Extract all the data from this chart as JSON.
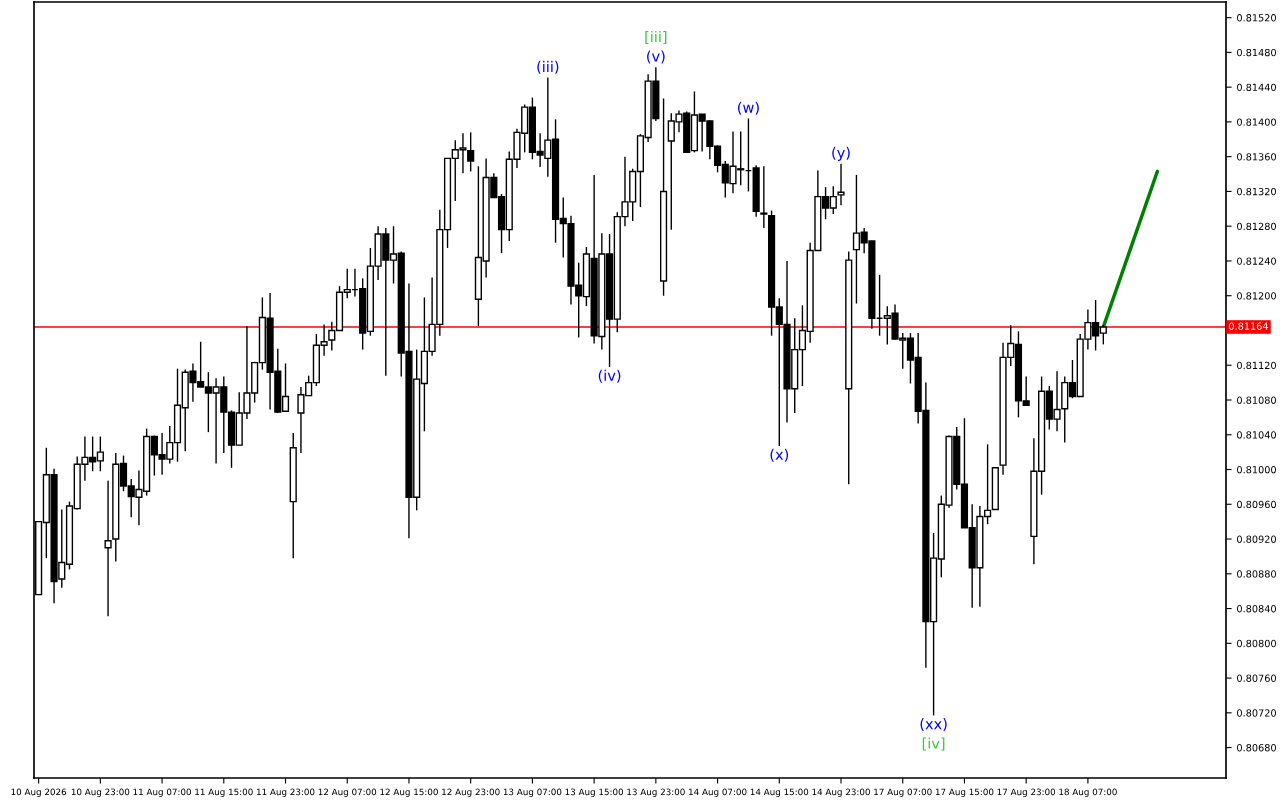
{
  "chart_data": {
    "type": "candlestick",
    "categories": [
      "10 Aug 2026",
      null,
      null,
      null,
      null,
      null,
      null,
      null,
      "10 Aug 23:00",
      null,
      null,
      null,
      null,
      null,
      null,
      null,
      "11 Aug 07:00",
      null,
      null,
      null,
      null,
      null,
      null,
      null,
      "11 Aug 15:00",
      null,
      null,
      null,
      null,
      null,
      null,
      null,
      "11 Aug 23:00",
      null,
      null,
      null,
      null,
      null,
      null,
      null,
      "12 Aug 07:00",
      null,
      null,
      null,
      null,
      null,
      null,
      null,
      "12 Aug 15:00",
      null,
      null,
      null,
      null,
      null,
      null,
      null,
      "12 Aug 23:00",
      null,
      null,
      null,
      null,
      null,
      null,
      null,
      "13 Aug 07:00",
      null,
      null,
      null,
      null,
      null,
      null,
      null,
      "13 Aug 15:00",
      null,
      null,
      null,
      null,
      null,
      null,
      null,
      "13 Aug 23:00",
      null,
      null,
      null,
      null,
      null,
      null,
      null,
      "14 Aug 07:00",
      null,
      null,
      null,
      null,
      null,
      null,
      null,
      "14 Aug 15:00",
      null,
      null,
      null,
      null,
      null,
      null,
      null,
      "14 Aug 23:00",
      null,
      null,
      null,
      null,
      null,
      null,
      null,
      "17 Aug 07:00",
      null,
      null,
      null,
      null,
      null,
      null,
      null,
      "17 Aug 15:00",
      null,
      null,
      null,
      null,
      null,
      null,
      null,
      "17 Aug 23:00",
      null,
      null,
      null,
      null,
      null,
      null,
      null,
      "18 Aug 07:00",
      null,
      null,
      null,
      null,
      null,
      null,
      null,
      null,
      null,
      null,
      null,
      null,
      null,
      null,
      null,
      null,
      null
    ],
    "ohlc": [
      [
        0.80856,
        0.8094,
        0.80856,
        0.8094
      ],
      [
        0.80939,
        0.81025,
        0.80898,
        0.80994
      ],
      [
        0.80994,
        0.81001,
        0.80846,
        0.80871
      ],
      [
        0.80874,
        0.80954,
        0.80864,
        0.80893
      ],
      [
        0.80891,
        0.80963,
        0.80885,
        0.80958
      ],
      [
        0.80955,
        0.81015,
        0.80954,
        0.81006
      ],
      [
        0.81006,
        0.81038,
        0.80987,
        0.81014
      ],
      [
        0.81014,
        0.81038,
        0.80998,
        0.81009
      ],
      [
        0.8101,
        0.81038,
        0.80998,
        0.8102
      ],
      [
        0.8091,
        0.80987,
        0.80831,
        0.80918
      ],
      [
        0.8092,
        0.81019,
        0.80894,
        0.81006
      ],
      [
        0.81007,
        0.81016,
        0.80975,
        0.80981
      ],
      [
        0.80981,
        0.80989,
        0.80945,
        0.80969
      ],
      [
        0.80968,
        0.80999,
        0.80936,
        0.80977
      ],
      [
        0.80975,
        0.81047,
        0.8097,
        0.81038
      ],
      [
        0.81038,
        0.81039,
        0.80993,
        0.81017
      ],
      [
        0.81017,
        0.81042,
        0.80994,
        0.81012
      ],
      [
        0.81012,
        0.8105,
        0.81007,
        0.81031
      ],
      [
        0.81031,
        0.81116,
        0.81009,
        0.81074
      ],
      [
        0.81071,
        0.81115,
        0.81021,
        0.81112
      ],
      [
        0.81113,
        0.81122,
        0.81078,
        0.811
      ],
      [
        0.81101,
        0.81147,
        0.81095,
        0.81095
      ],
      [
        0.81095,
        0.81112,
        0.81043,
        0.81088
      ],
      [
        0.81088,
        0.81105,
        0.81007,
        0.81095
      ],
      [
        0.81095,
        0.81107,
        0.81019,
        0.81066
      ],
      [
        0.81066,
        0.81068,
        0.81002,
        0.81028
      ],
      [
        0.81028,
        0.81089,
        0.81028,
        0.81065
      ],
      [
        0.81065,
        0.81165,
        0.81058,
        0.81088
      ],
      [
        0.81088,
        0.81124,
        0.81077,
        0.81123
      ],
      [
        0.81123,
        0.81198,
        0.81115,
        0.81175
      ],
      [
        0.81174,
        0.81203,
        0.81069,
        0.81112
      ],
      [
        0.81113,
        0.81139,
        0.81065,
        0.81066
      ],
      [
        0.81067,
        0.81122,
        0.81067,
        0.81084
      ],
      [
        0.80963,
        0.81042,
        0.80898,
        0.81025
      ],
      [
        0.81065,
        0.81095,
        0.81019,
        0.81086
      ],
      [
        0.81085,
        0.81108,
        0.81085,
        0.811
      ],
      [
        0.811,
        0.81156,
        0.81096,
        0.81143
      ],
      [
        0.81143,
        0.81167,
        0.81131,
        0.81147
      ],
      [
        0.81149,
        0.8117,
        0.81137,
        0.8116
      ],
      [
        0.8116,
        0.81211,
        0.8116,
        0.81204
      ],
      [
        0.81204,
        0.81231,
        0.81197,
        0.81207
      ],
      [
        0.81207,
        0.81231,
        0.81199,
        0.81207
      ],
      [
        0.81208,
        0.8122,
        0.81138,
        0.81157
      ],
      [
        0.81159,
        0.81255,
        0.81154,
        0.81234
      ],
      [
        0.81234,
        0.8128,
        0.81218,
        0.81271
      ],
      [
        0.81271,
        0.81278,
        0.81108,
        0.81241
      ],
      [
        0.81241,
        0.8128,
        0.81214,
        0.81248
      ],
      [
        0.81249,
        0.81251,
        0.81107,
        0.81134
      ],
      [
        0.81136,
        0.81214,
        0.80921,
        0.80968
      ],
      [
        0.80968,
        0.81138,
        0.80953,
        0.81104
      ],
      [
        0.81099,
        0.81198,
        0.81044,
        0.81136
      ],
      [
        0.81136,
        0.81221,
        0.81131,
        0.81167
      ],
      [
        0.81167,
        0.81299,
        0.81154,
        0.81276
      ],
      [
        0.81276,
        0.81358,
        0.81255,
        0.81358
      ],
      [
        0.81358,
        0.81379,
        0.81309,
        0.81368
      ],
      [
        0.81368,
        0.81387,
        0.81341,
        0.8137
      ],
      [
        0.81367,
        0.81388,
        0.81343,
        0.81355
      ],
      [
        0.81196,
        0.81349,
        0.81165,
        0.81244
      ],
      [
        0.8124,
        0.81358,
        0.81221,
        0.81336
      ],
      [
        0.81336,
        0.81341,
        0.81313,
        0.81313
      ],
      [
        0.81314,
        0.81317,
        0.81249,
        0.81276
      ],
      [
        0.81276,
        0.81366,
        0.81263,
        0.81357
      ],
      [
        0.81357,
        0.81392,
        0.81347,
        0.81388
      ],
      [
        0.81387,
        0.8142,
        0.81365,
        0.81417
      ],
      [
        0.81417,
        0.81428,
        0.81357,
        0.81365
      ],
      [
        0.81366,
        0.81387,
        0.81348,
        0.81362
      ],
      [
        0.81358,
        0.81451,
        0.81337,
        0.81379
      ],
      [
        0.8138,
        0.81403,
        0.81261,
        0.81288
      ],
      [
        0.81289,
        0.81313,
        0.81244,
        0.81283
      ],
      [
        0.81283,
        0.81292,
        0.8119,
        0.81211
      ],
      [
        0.81212,
        0.81238,
        0.81152,
        0.812
      ],
      [
        0.81199,
        0.81256,
        0.81188,
        0.81248
      ],
      [
        0.81243,
        0.81339,
        0.81145,
        0.81154
      ],
      [
        0.81153,
        0.81272,
        0.81138,
        0.81248
      ],
      [
        0.81248,
        0.81271,
        0.81118,
        0.81173
      ],
      [
        0.81173,
        0.81296,
        0.81158,
        0.81291
      ],
      [
        0.81291,
        0.8136,
        0.8128,
        0.81308
      ],
      [
        0.81308,
        0.81346,
        0.81286,
        0.81343
      ],
      [
        0.81343,
        0.81386,
        0.81302,
        0.81384
      ],
      [
        0.81382,
        0.81455,
        0.81377,
        0.81447
      ],
      [
        0.81447,
        0.81463,
        0.81401,
        0.81404
      ],
      [
        0.81217,
        0.81427,
        0.812,
        0.8132
      ],
      [
        0.81378,
        0.8141,
        0.81276,
        0.81401
      ],
      [
        0.814,
        0.81413,
        0.81388,
        0.81409
      ],
      [
        0.8141,
        0.81412,
        0.81365,
        0.81365
      ],
      [
        0.81367,
        0.81435,
        0.81365,
        0.81408
      ],
      [
        0.81409,
        0.81409,
        0.81366,
        0.81401
      ],
      [
        0.81401,
        0.81402,
        0.81357,
        0.81372
      ],
      [
        0.81372,
        0.81373,
        0.81342,
        0.8135
      ],
      [
        0.81351,
        0.81355,
        0.81313,
        0.8133
      ],
      [
        0.81329,
        0.81389,
        0.81318,
        0.81349
      ],
      [
        0.81346,
        0.81389,
        0.81327,
        0.81345
      ],
      [
        0.81344,
        0.81404,
        0.8132,
        0.81344
      ],
      [
        0.81347,
        0.8135,
        0.81291,
        0.81297
      ],
      [
        0.81295,
        0.81349,
        0.81278,
        0.81294
      ],
      [
        0.81292,
        0.81298,
        0.81154,
        0.81187
      ],
      [
        0.81187,
        0.81197,
        0.81027,
        0.81167
      ],
      [
        0.81167,
        0.8124,
        0.81054,
        0.81093
      ],
      [
        0.81093,
        0.81174,
        0.81065,
        0.81138
      ],
      [
        0.81138,
        0.81189,
        0.81096,
        0.8116
      ],
      [
        0.81159,
        0.81261,
        0.81146,
        0.81252
      ],
      [
        0.81252,
        0.81344,
        0.81252,
        0.81314
      ],
      [
        0.81314,
        0.81325,
        0.81288,
        0.81301
      ],
      [
        0.81301,
        0.81326,
        0.81294,
        0.81314
      ],
      [
        0.81316,
        0.81352,
        0.81304,
        0.81319
      ],
      [
        0.81093,
        0.81251,
        0.80983,
        0.81241
      ],
      [
        0.81253,
        0.81339,
        0.81191,
        0.81272
      ],
      [
        0.81273,
        0.81278,
        0.81249,
        0.81261
      ],
      [
        0.81263,
        0.81263,
        0.81162,
        0.81174
      ],
      [
        0.81174,
        0.81224,
        0.81154,
        0.81174
      ],
      [
        0.81174,
        0.81188,
        0.81144,
        0.81177
      ],
      [
        0.8118,
        0.8119,
        0.8115,
        0.8115
      ],
      [
        0.81149,
        0.81157,
        0.81116,
        0.81151
      ],
      [
        0.81151,
        0.81157,
        0.81099,
        0.81126
      ],
      [
        0.81129,
        0.81157,
        0.81053,
        0.81067
      ],
      [
        0.81068,
        0.811,
        0.80772,
        0.80825
      ],
      [
        0.80825,
        0.80927,
        0.80717,
        0.80898
      ],
      [
        0.80897,
        0.8097,
        0.80876,
        0.8096
      ],
      [
        0.80959,
        0.81039,
        0.80956,
        0.81038
      ],
      [
        0.81038,
        0.81049,
        0.80977,
        0.80983
      ],
      [
        0.80983,
        0.81059,
        0.80933,
        0.80933
      ],
      [
        0.80933,
        0.8096,
        0.80841,
        0.80887
      ],
      [
        0.80887,
        0.80958,
        0.80842,
        0.80946
      ],
      [
        0.80946,
        0.81029,
        0.80937,
        0.80953
      ],
      [
        0.80954,
        0.81002,
        0.80954,
        0.81002
      ],
      [
        0.81005,
        0.81146,
        0.80994,
        0.81129
      ],
      [
        0.81129,
        0.81166,
        0.81119,
        0.81145
      ],
      [
        0.81144,
        0.81159,
        0.8106,
        0.81079
      ],
      [
        0.81079,
        0.81107,
        0.81074,
        0.81074
      ],
      [
        0.80923,
        0.81036,
        0.80891,
        0.80998
      ],
      [
        0.80998,
        0.81107,
        0.80971,
        0.8109
      ],
      [
        0.8109,
        0.81096,
        0.81046,
        0.81058
      ],
      [
        0.81058,
        0.81113,
        0.81044,
        0.81069
      ],
      [
        0.8107,
        0.81107,
        0.81031,
        0.811
      ],
      [
        0.811,
        0.81126,
        0.81082,
        0.81084
      ],
      [
        0.81084,
        0.81156,
        0.81084,
        0.8115
      ],
      [
        0.8115,
        0.81184,
        0.81138,
        0.81169
      ],
      [
        0.81169,
        0.81195,
        0.81137,
        0.81154
      ],
      [
        0.81157,
        0.81166,
        0.81144,
        0.81164
      ],
      null,
      null,
      null,
      null,
      null,
      null,
      null,
      null,
      null,
      null,
      null,
      null,
      null,
      null,
      null
    ],
    "series": [
      {
        "type": "line",
        "color": "#008000",
        "values": [
          null,
          null,
          null,
          null,
          null,
          null,
          null,
          null,
          null,
          null,
          null,
          null,
          null,
          null,
          null,
          null,
          null,
          null,
          null,
          null,
          null,
          null,
          null,
          null,
          null,
          null,
          null,
          null,
          null,
          null,
          null,
          null,
          null,
          null,
          null,
          null,
          null,
          null,
          null,
          null,
          null,
          null,
          null,
          null,
          null,
          null,
          null,
          null,
          null,
          null,
          null,
          null,
          null,
          null,
          null,
          null,
          null,
          null,
          null,
          null,
          null,
          null,
          null,
          null,
          null,
          null,
          null,
          null,
          null,
          null,
          null,
          null,
          null,
          null,
          null,
          null,
          null,
          null,
          null,
          null,
          null,
          null,
          null,
          null,
          null,
          null,
          null,
          null,
          null,
          null,
          null,
          null,
          null,
          null,
          null,
          null,
          null,
          null,
          null,
          null,
          null,
          null,
          null,
          null,
          null,
          null,
          null,
          null,
          null,
          null,
          null,
          null,
          null,
          null,
          null,
          null,
          null,
          null,
          null,
          null,
          null,
          null,
          null,
          null,
          null,
          null,
          null,
          null,
          null,
          null,
          null,
          null,
          null,
          null,
          null,
          null,
          null,
          null,
          0.81164,
          null,
          null,
          null,
          null,
          null,
          null,
          0.81343,
          null,
          null,
          null,
          null,
          null,
          null,
          null,
          null
        ]
      }
    ],
    "ylim": [
      0.80645,
      0.81538
    ],
    "yticks": [
      {
        "value": 0.8068,
        "label": "0.80680"
      },
      {
        "value": 0.8072,
        "label": "0.80720"
      },
      {
        "value": 0.8076,
        "label": "0.80760"
      },
      {
        "value": 0.808,
        "label": "0.80800"
      },
      {
        "value": 0.8084,
        "label": "0.80840"
      },
      {
        "value": 0.8088,
        "label": "0.80880"
      },
      {
        "value": 0.8092,
        "label": "0.80920"
      },
      {
        "value": 0.8096,
        "label": "0.80960"
      },
      {
        "value": 0.81,
        "label": "0.81000"
      },
      {
        "value": 0.8104,
        "label": "0.81040"
      },
      {
        "value": 0.8108,
        "label": "0.81080"
      },
      {
        "value": 0.8112,
        "label": "0.81120"
      },
      {
        "value": 0.812,
        "label": "0.81200"
      },
      {
        "value": 0.8124,
        "label": "0.81240"
      },
      {
        "value": 0.8128,
        "label": "0.81280"
      },
      {
        "value": 0.8132,
        "label": "0.81320"
      },
      {
        "value": 0.8136,
        "label": "0.81360"
      },
      {
        "value": 0.814,
        "label": "0.81400"
      },
      {
        "value": 0.8144,
        "label": "0.81440"
      },
      {
        "value": 0.8148,
        "label": "0.81480"
      },
      {
        "value": 0.8152,
        "label": "0.81520"
      }
    ],
    "ref_lines": [
      {
        "axis": "y",
        "value": 0.81164,
        "label": "0.81164",
        "color": "#ff0000"
      }
    ],
    "annotations": [
      "(iii)",
      "(v)",
      "[iii]",
      "(iv)",
      "(w)",
      "(x)",
      "(y)",
      "(xx)",
      "[iv]"
    ],
    "grid": false
  }
}
